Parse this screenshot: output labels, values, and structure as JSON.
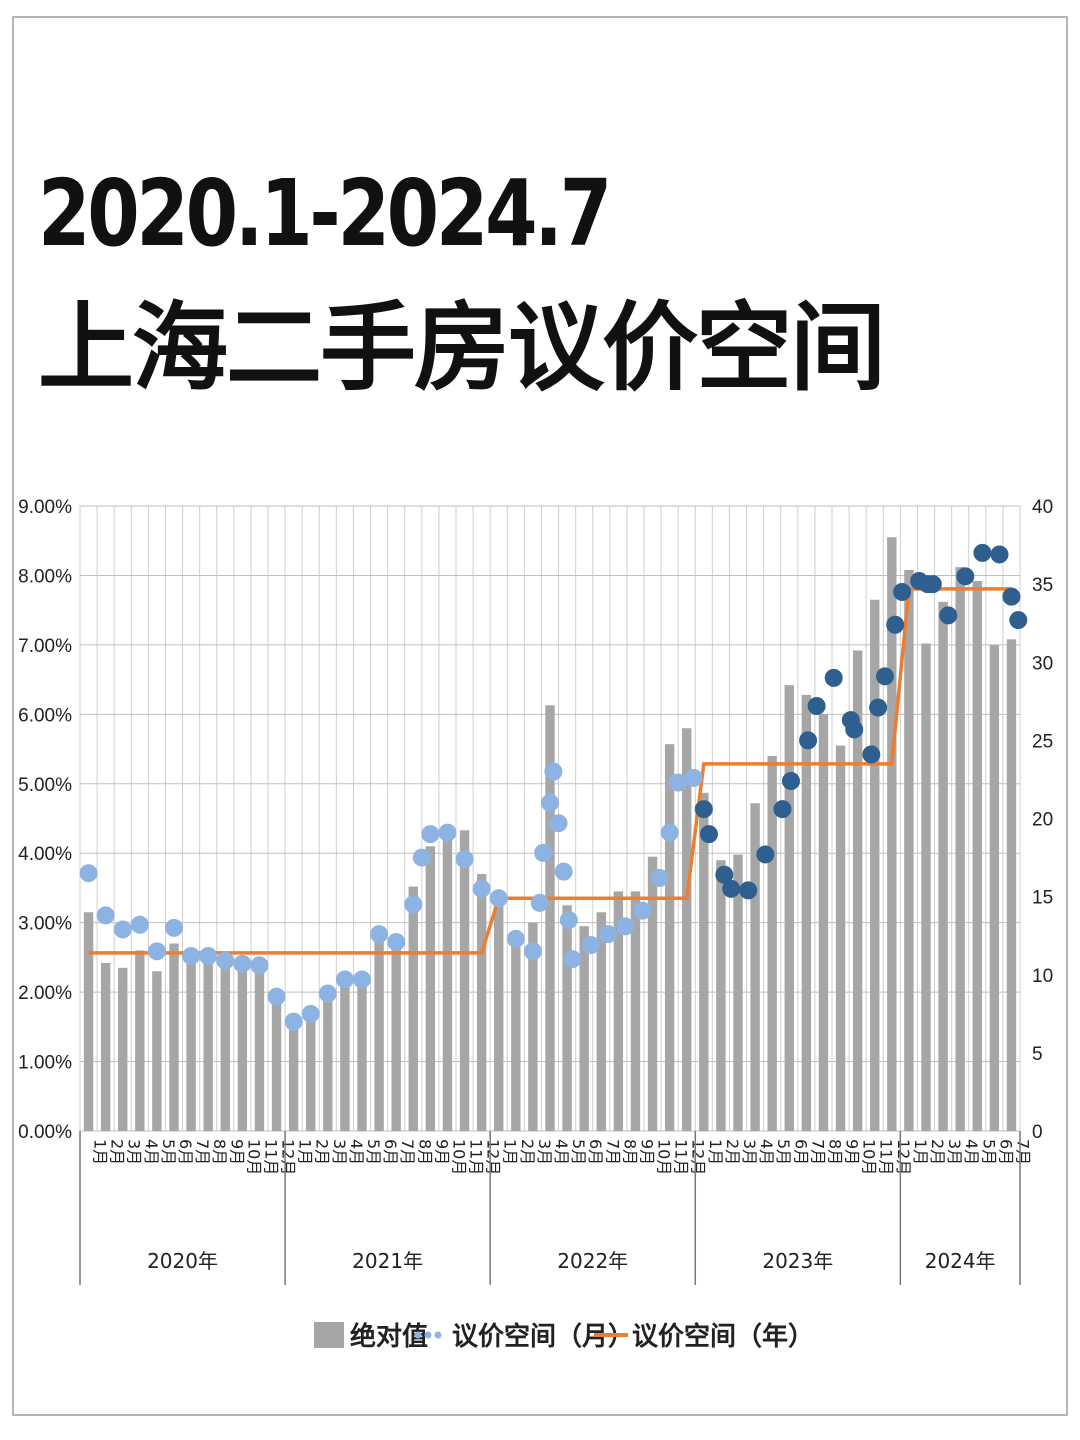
{
  "title_line1": "2020.1-2024.7",
  "title_line2": "上海二手房议价空间",
  "colors": {
    "bar": "#a6a6a6",
    "month_dot_light": "#8db3e2",
    "month_dot_dark": "#2e5f8e",
    "year_line": "#ed7d31",
    "grid": "#bfbfbf"
  },
  "chart_data": {
    "type": "bar+scatter+line",
    "left_axis": {
      "ylim": [
        0,
        9
      ],
      "unit": "%",
      "ticks": [
        "0.00%",
        "1.00%",
        "2.00%",
        "3.00%",
        "4.00%",
        "5.00%",
        "6.00%",
        "7.00%",
        "8.00%",
        "9.00%"
      ]
    },
    "right_axis": {
      "ylim": [
        0,
        40
      ],
      "ticks": [
        "0",
        "5",
        "10",
        "15",
        "20",
        "25",
        "30",
        "35",
        "40"
      ]
    },
    "groups": [
      {
        "label": "2020年",
        "months": [
          "1月",
          "2月",
          "3月",
          "4月",
          "5月",
          "6月",
          "7月",
          "8月",
          "9月",
          "10月",
          "11月",
          "12月"
        ]
      },
      {
        "label": "2021年",
        "months": [
          "1月",
          "2月",
          "3月",
          "4月",
          "5月",
          "6月",
          "7月",
          "8月",
          "9月",
          "10月",
          "11月",
          "12月"
        ]
      },
      {
        "label": "2022年",
        "months": [
          "1月",
          "2月",
          "3月",
          "4月",
          "5月",
          "6月",
          "7月",
          "8月",
          "9月",
          "10月",
          "11月",
          "12月"
        ]
      },
      {
        "label": "2023年",
        "months": [
          "1月",
          "2月",
          "3月",
          "4月",
          "5月",
          "6月",
          "7月",
          "8月",
          "9月",
          "10月",
          "11月",
          "12月"
        ]
      },
      {
        "label": "2024年",
        "months": [
          "1月",
          "2月",
          "3月",
          "4月",
          "5月",
          "6月",
          "7月"
        ]
      }
    ],
    "bars_percent": [
      3.15,
      2.42,
      2.35,
      2.6,
      2.3,
      2.7,
      2.45,
      2.45,
      2.58,
      2.38,
      2.35,
      1.95,
      1.6,
      1.75,
      1.98,
      2.18,
      2.22,
      2.75,
      2.7,
      3.52,
      4.1,
      4.2,
      4.33,
      3.7,
      3.25,
      2.72,
      3.0,
      6.13,
      3.25,
      2.95,
      3.15,
      3.45,
      3.45,
      3.95,
      5.57,
      5.8,
      4.87,
      3.9,
      3.98,
      4.72,
      5.4,
      6.42,
      6.28,
      6.0,
      5.55,
      6.92,
      7.65,
      8.55,
      8.08,
      7.02,
      7.62,
      8.12,
      7.92,
      7.0,
      7.08
    ],
    "month_dots": [
      {
        "x": 0.5,
        "y": 16.5
      },
      {
        "x": 1.5,
        "y": 13.8
      },
      {
        "x": 2.5,
        "y": 12.9
      },
      {
        "x": 3.5,
        "y": 13.2
      },
      {
        "x": 4.5,
        "y": 11.5
      },
      {
        "x": 5.5,
        "y": 13.0
      },
      {
        "x": 6.5,
        "y": 11.2
      },
      {
        "x": 7.5,
        "y": 11.2
      },
      {
        "x": 8.5,
        "y": 10.9
      },
      {
        "x": 9.5,
        "y": 10.7
      },
      {
        "x": 10.5,
        "y": 10.6
      },
      {
        "x": 11.5,
        "y": 8.6
      },
      {
        "x": 12.5,
        "y": 7.0
      },
      {
        "x": 13.5,
        "y": 7.5
      },
      {
        "x": 14.5,
        "y": 8.8
      },
      {
        "x": 15.5,
        "y": 9.7
      },
      {
        "x": 16.5,
        "y": 9.7
      },
      {
        "x": 17.5,
        "y": 12.6
      },
      {
        "x": 18.5,
        "y": 12.1
      },
      {
        "x": 19.5,
        "y": 14.5
      },
      {
        "x": 20,
        "y": 17.5
      },
      {
        "x": 20.5,
        "y": 19.0
      },
      {
        "x": 21.5,
        "y": 19.1
      },
      {
        "x": 22.5,
        "y": 17.4
      },
      {
        "x": 23.5,
        "y": 15.5
      },
      {
        "x": 24.5,
        "y": 14.9
      },
      {
        "x": 25.5,
        "y": 12.3
      },
      {
        "x": 26.5,
        "y": 11.5
      },
      {
        "x": 26.9,
        "y": 14.6
      },
      {
        "x": 27.1,
        "y": 17.8
      },
      {
        "x": 27.5,
        "y": 21.0
      },
      {
        "x": 27.7,
        "y": 23.0
      },
      {
        "x": 28,
        "y": 19.7
      },
      {
        "x": 28.3,
        "y": 16.6
      },
      {
        "x": 28.6,
        "y": 13.5
      },
      {
        "x": 28.8,
        "y": 11.0
      },
      {
        "x": 29.9,
        "y": 11.9
      },
      {
        "x": 30.9,
        "y": 12.6
      },
      {
        "x": 31.9,
        "y": 13.1
      },
      {
        "x": 32.9,
        "y": 14.1
      },
      {
        "x": 33.9,
        "y": 16.2
      },
      {
        "x": 34.5,
        "y": 19.1
      },
      {
        "x": 35,
        "y": 22.3
      },
      {
        "x": 35.9,
        "y": 22.6
      },
      {
        "x": 36.5,
        "y": 20.6
      },
      {
        "x": 36.8,
        "y": 19.0
      },
      {
        "x": 37.7,
        "y": 16.4
      },
      {
        "x": 38.1,
        "y": 15.5
      },
      {
        "x": 39.1,
        "y": 15.4
      },
      {
        "x": 40.1,
        "y": 17.7
      },
      {
        "x": 41.1,
        "y": 20.6
      },
      {
        "x": 41.6,
        "y": 22.4
      },
      {
        "x": 42.6,
        "y": 25.0
      },
      {
        "x": 43.1,
        "y": 27.2
      },
      {
        "x": 44.1,
        "y": 29.0
      },
      {
        "x": 45.1,
        "y": 26.3
      },
      {
        "x": 45.3,
        "y": 25.7
      },
      {
        "x": 46.3,
        "y": 24.1
      },
      {
        "x": 46.7,
        "y": 27.1
      },
      {
        "x": 47.1,
        "y": 29.1
      },
      {
        "x": 47.7,
        "y": 32.4
      },
      {
        "x": 48.1,
        "y": 34.5
      },
      {
        "x": 49.1,
        "y": 35.2
      },
      {
        "x": 49.6,
        "y": 35.0
      },
      {
        "x": 49.9,
        "y": 35.0
      },
      {
        "x": 50.8,
        "y": 33.0
      },
      {
        "x": 51.8,
        "y": 35.5
      },
      {
        "x": 52.8,
        "y": 37.0
      },
      {
        "x": 53.8,
        "y": 36.9
      },
      {
        "x": 54.5,
        "y": 34.2
      },
      {
        "x": 54.9,
        "y": 32.7
      }
    ],
    "year_line": [
      {
        "x": 0.5,
        "y": 11.4
      },
      {
        "x": 23.5,
        "y": 11.4
      },
      {
        "x": 24.5,
        "y": 14.9
      },
      {
        "x": 35.5,
        "y": 14.9
      },
      {
        "x": 36.5,
        "y": 23.5
      },
      {
        "x": 47.5,
        "y": 23.5
      },
      {
        "x": 48.5,
        "y": 34.7
      },
      {
        "x": 54.5,
        "y": 34.7
      }
    ],
    "legend": [
      "绝对值",
      "议价空间（月）",
      "议价空间（年）"
    ],
    "grid": true,
    "legend_position": "bottom"
  }
}
